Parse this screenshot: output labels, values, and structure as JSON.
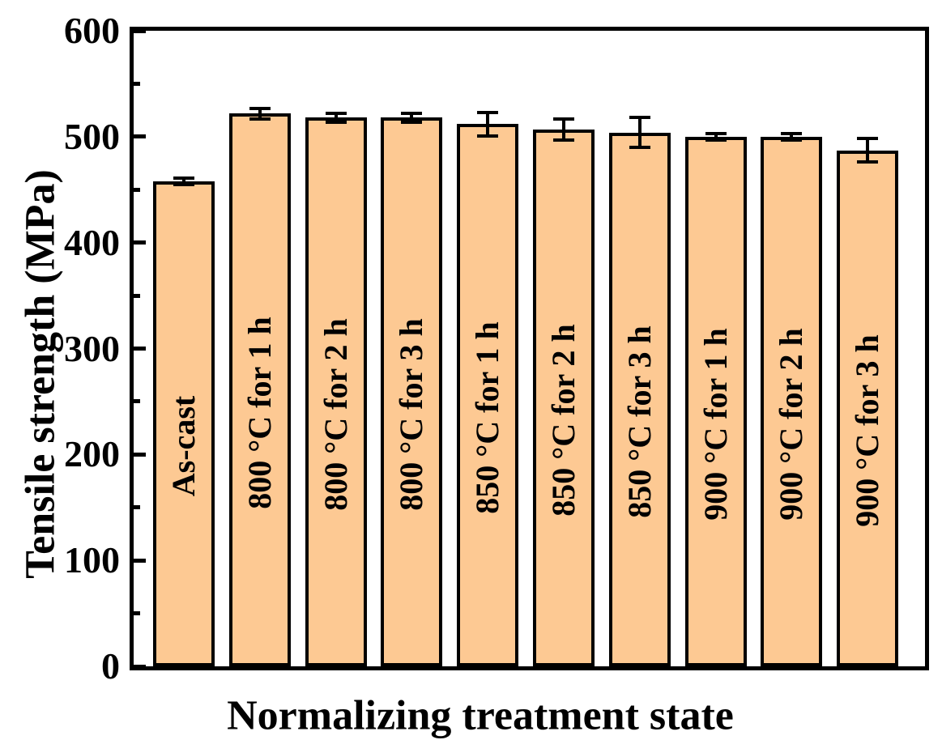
{
  "chart_data": {
    "type": "bar",
    "title": "",
    "xlabel": "Normalizing treatment state",
    "ylabel": "Tensile strength (MPa)",
    "categories": [
      "As-cast",
      "800 °C for 1 h",
      "800 °C for 2 h",
      "800 °C for 3 h",
      "850 °C for 1 h",
      "850 °C for 2 h",
      "850 °C for 3 h",
      "900 °C for 1 h",
      "900 °C for 2 h",
      "900 °C for 3 h"
    ],
    "values": [
      458,
      522,
      518,
      518,
      512,
      507,
      504,
      500,
      500,
      487
    ],
    "errors": [
      3,
      5,
      4,
      4,
      11,
      10,
      14,
      3,
      3,
      11
    ],
    "ylim": [
      0,
      600
    ],
    "yticks": [
      0,
      100,
      200,
      300,
      400,
      500,
      600
    ],
    "minor_yticks": [
      50,
      150,
      250,
      350,
      450,
      550
    ],
    "grid": false,
    "legend": null,
    "bar_fill_color": "#FDC993",
    "bar_border_color": "#000000",
    "axis_color": "#000000",
    "error_bar_color": "#000000",
    "label_color": "#000000"
  }
}
